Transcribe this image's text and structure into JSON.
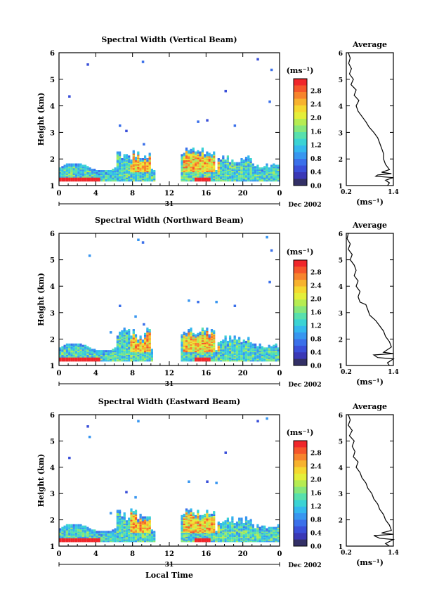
{
  "colorbar": {
    "unit_label": "(ms⁻¹)",
    "ticks": [
      "2.8",
      "2.4",
      "2.0",
      "1.6",
      "1.2",
      "0.8",
      "0.4",
      "0.0"
    ],
    "colors": [
      "#f0262a",
      "#f5562a",
      "#f7842c",
      "#f7b22e",
      "#f5d830",
      "#e4ef3a",
      "#b6ec52",
      "#86e77c",
      "#58e0ad",
      "#3bd3d4",
      "#34b8ee",
      "#3896f0",
      "#3b70ea",
      "#3a4fd9",
      "#3a38b6",
      "#333066"
    ]
  },
  "chart_data": [
    {
      "type": "heatmap",
      "title": "Spectral Width (Vertical Beam)",
      "ylabel": "Height (km)",
      "xlabel": "",
      "x_ticks": [
        "0",
        "4",
        "8",
        "12",
        "16",
        "20",
        "0"
      ],
      "y_ticks": [
        "1",
        "2",
        "3",
        "4",
        "5",
        "6"
      ],
      "xlim": [
        0,
        24
      ],
      "ylim": [
        1,
        6
      ],
      "date_day": "31",
      "date_label": "Dec 2002",
      "gap_hours": [
        10.3,
        13.2
      ],
      "profile": {
        "title": "Average",
        "xlabel": "(ms⁻¹)",
        "x_ticks": [
          "0.2",
          "1.4"
        ],
        "xlim": [
          0.2,
          1.4
        ],
        "y_ticks": [
          "1",
          "2",
          "3",
          "4",
          "5",
          "6"
        ],
        "points": [
          [
            0.25,
            6.0
          ],
          [
            0.3,
            5.8
          ],
          [
            0.26,
            5.6
          ],
          [
            0.33,
            5.4
          ],
          [
            0.28,
            5.2
          ],
          [
            0.38,
            5.0
          ],
          [
            0.32,
            4.8
          ],
          [
            0.45,
            4.6
          ],
          [
            0.4,
            4.4
          ],
          [
            0.52,
            4.2
          ],
          [
            0.45,
            4.0
          ],
          [
            0.5,
            3.8
          ],
          [
            0.6,
            3.6
          ],
          [
            0.7,
            3.4
          ],
          [
            0.78,
            3.2
          ],
          [
            0.9,
            3.0
          ],
          [
            1.0,
            2.8
          ],
          [
            1.05,
            2.6
          ],
          [
            1.1,
            2.4
          ],
          [
            1.15,
            2.2
          ],
          [
            1.15,
            2.0
          ],
          [
            1.2,
            1.8
          ],
          [
            1.3,
            1.6
          ],
          [
            1.1,
            1.5
          ],
          [
            1.35,
            1.45
          ],
          [
            1.0,
            1.4
          ],
          [
            0.95,
            1.35
          ],
          [
            1.4,
            1.3
          ],
          [
            1.2,
            1.2
          ],
          [
            1.3,
            1.1
          ],
          [
            1.25,
            1.0
          ]
        ]
      }
    },
    {
      "type": "heatmap",
      "title": "Spectral Width (Northward Beam)",
      "ylabel": "Height (km)",
      "xlabel": "",
      "x_ticks": [
        "0",
        "4",
        "8",
        "12",
        "16",
        "20",
        "0"
      ],
      "y_ticks": [
        "1",
        "2",
        "3",
        "4",
        "5",
        "6"
      ],
      "xlim": [
        0,
        24
      ],
      "ylim": [
        1,
        6
      ],
      "date_day": "31",
      "date_label": "Dec 2002",
      "gap_hours": [
        10.2,
        13.2
      ],
      "profile": {
        "title": "Average",
        "xlabel": "(ms⁻¹)",
        "x_ticks": [
          "0.2",
          "1.4"
        ],
        "xlim": [
          0.2,
          1.4
        ],
        "y_ticks": [
          "1",
          "2",
          "3",
          "4",
          "5",
          "6"
        ],
        "points": [
          [
            0.25,
            6.0
          ],
          [
            0.22,
            5.8
          ],
          [
            0.3,
            5.6
          ],
          [
            0.25,
            5.4
          ],
          [
            0.35,
            5.2
          ],
          [
            0.3,
            5.0
          ],
          [
            0.4,
            4.8
          ],
          [
            0.45,
            4.6
          ],
          [
            0.4,
            4.4
          ],
          [
            0.5,
            4.2
          ],
          [
            0.45,
            4.0
          ],
          [
            0.55,
            3.8
          ],
          [
            0.5,
            3.6
          ],
          [
            0.55,
            3.4
          ],
          [
            0.7,
            3.3
          ],
          [
            0.75,
            3.1
          ],
          [
            0.8,
            2.9
          ],
          [
            0.95,
            2.7
          ],
          [
            1.05,
            2.5
          ],
          [
            1.15,
            2.3
          ],
          [
            1.2,
            2.1
          ],
          [
            1.3,
            1.9
          ],
          [
            1.35,
            1.7
          ],
          [
            1.15,
            1.5
          ],
          [
            1.4,
            1.45
          ],
          [
            0.9,
            1.4
          ],
          [
            1.0,
            1.3
          ],
          [
            1.4,
            1.25
          ],
          [
            1.25,
            1.1
          ],
          [
            1.3,
            1.0
          ]
        ]
      }
    },
    {
      "type": "heatmap",
      "title": "Spectral Width (Eastward Beam)",
      "ylabel": "Height (km)",
      "xlabel": "Local Time",
      "x_ticks": [
        "0",
        "4",
        "8",
        "12",
        "16",
        "20",
        "0"
      ],
      "y_ticks": [
        "1",
        "2",
        "3",
        "4",
        "5",
        "6"
      ],
      "xlim": [
        0,
        24
      ],
      "ylim": [
        1,
        6
      ],
      "date_day": "31",
      "date_label": "Dec 2002",
      "gap_hours": [
        10.3,
        13.2
      ],
      "profile": {
        "title": "Average",
        "xlabel": "(ms⁻¹)",
        "x_ticks": [
          "0.2",
          "1.4"
        ],
        "xlim": [
          0.2,
          1.4
        ],
        "y_ticks": [
          "1",
          "2",
          "3",
          "4",
          "5",
          "6"
        ],
        "points": [
          [
            0.25,
            6.0
          ],
          [
            0.3,
            5.8
          ],
          [
            0.25,
            5.6
          ],
          [
            0.35,
            5.4
          ],
          [
            0.28,
            5.2
          ],
          [
            0.4,
            5.0
          ],
          [
            0.35,
            4.8
          ],
          [
            0.42,
            4.6
          ],
          [
            0.38,
            4.4
          ],
          [
            0.5,
            4.2
          ],
          [
            0.45,
            4.0
          ],
          [
            0.55,
            3.8
          ],
          [
            0.6,
            3.6
          ],
          [
            0.7,
            3.4
          ],
          [
            0.75,
            3.2
          ],
          [
            0.85,
            3.0
          ],
          [
            0.9,
            2.8
          ],
          [
            1.0,
            2.6
          ],
          [
            1.05,
            2.4
          ],
          [
            1.15,
            2.2
          ],
          [
            1.2,
            2.0
          ],
          [
            1.3,
            1.8
          ],
          [
            1.35,
            1.6
          ],
          [
            1.1,
            1.5
          ],
          [
            1.4,
            1.45
          ],
          [
            0.9,
            1.4
          ],
          [
            1.05,
            1.3
          ],
          [
            1.4,
            1.25
          ],
          [
            1.2,
            1.1
          ],
          [
            1.3,
            1.0
          ]
        ]
      }
    }
  ]
}
